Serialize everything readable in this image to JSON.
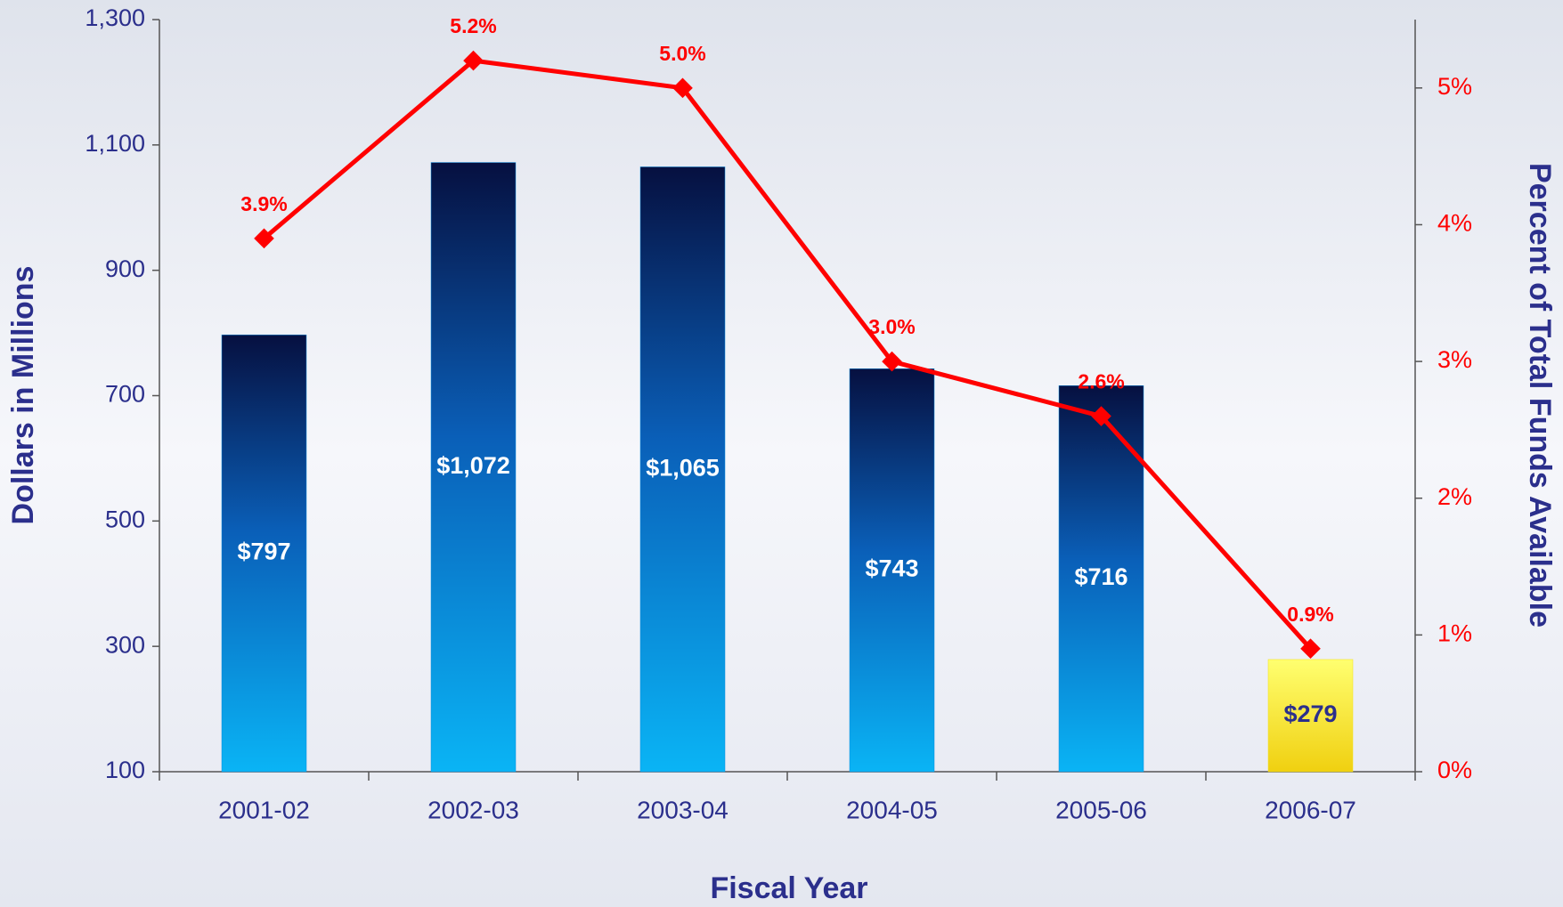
{
  "chart_data": {
    "type": "bar-line",
    "x_label": "Fiscal Year",
    "y_label": "Dollars in Millions",
    "y2_label": "Percent of Total Funds Available",
    "categories": [
      "2001-02",
      "2002-03",
      "2003-04",
      "2004-05",
      "2005-06",
      "2006-07"
    ],
    "series": [
      {
        "type": "bar",
        "values": [
          797,
          1072,
          1065,
          743,
          716,
          279
        ],
        "value_labels": [
          "$797",
          "$1,072",
          "$1,065",
          "$743",
          "$716",
          "$279"
        ],
        "colors": [
          "#0a8ee0",
          "#0a8ee0",
          "#0a8ee0",
          "#0a8ee0",
          "#0a8ee0",
          "#f2df1a"
        ],
        "label_colors": [
          "#ffffff",
          "#ffffff",
          "#ffffff",
          "#ffffff",
          "#ffffff",
          "#2b2f8c"
        ]
      },
      {
        "type": "line",
        "axis": "y2",
        "color": "#ff0000",
        "values": [
          3.9,
          5.2,
          5.0,
          3.0,
          2.6,
          0.9
        ],
        "value_labels": [
          "3.9%",
          "5.2%",
          "5.0%",
          "3.0%",
          "2.6%",
          "0.9%"
        ]
      }
    ],
    "ylim": [
      100,
      1300
    ],
    "yticks": [
      100,
      300,
      500,
      700,
      900,
      {
        "value": 1100,
        "label": "1,100"
      },
      {
        "value": 1300,
        "label": "1,300"
      }
    ],
    "y2lim": [
      0,
      5.5
    ],
    "y2ticks": [
      {
        "value": 0,
        "label": "0%"
      },
      {
        "value": 1,
        "label": "1%"
      },
      {
        "value": 2,
        "label": "2%"
      },
      {
        "value": 3,
        "label": "3%"
      },
      {
        "value": 4,
        "label": "4%"
      },
      {
        "value": 5,
        "label": "5%"
      }
    ]
  }
}
